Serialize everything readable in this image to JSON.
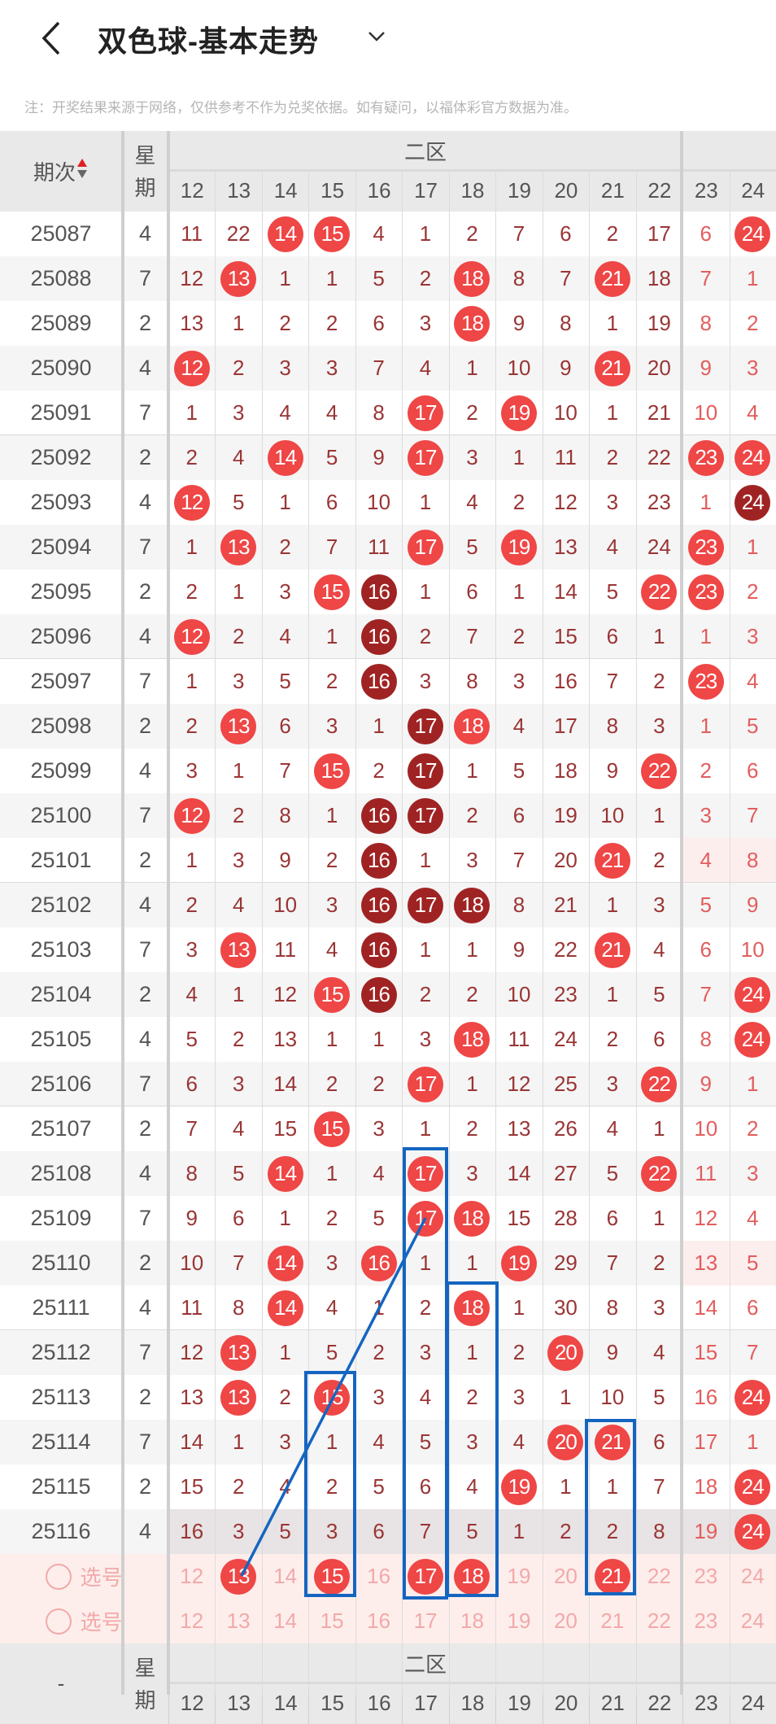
{
  "header": {
    "title": "双色球-基本走势",
    "back_icon": "chevron-left-icon",
    "dropdown_icon": "chevron-down-icon"
  },
  "notice": "注：开奖结果来源于网络，仅供参考不作为兑奖依据。如有疑问，以福体彩官方数据为准。",
  "table": {
    "period_header": "期次",
    "weekday_header": "星期",
    "zone_header": "二区",
    "columns": [
      12,
      13,
      14,
      15,
      16,
      17,
      18,
      19,
      20,
      21,
      22,
      23,
      24
    ],
    "colors": {
      "ball": "#ef4646",
      "ball_hot": "#a02323",
      "miss_text": "#9a3535",
      "annotation": "#1565c0"
    },
    "rows": [
      {
        "period": "25087",
        "weekday": "4",
        "values": [
          11,
          22,
          14,
          15,
          4,
          1,
          2,
          7,
          6,
          2,
          17,
          6,
          24
        ],
        "hits": [
          14,
          15,
          24
        ],
        "hot": []
      },
      {
        "period": "25088",
        "weekday": "7",
        "values": [
          12,
          13,
          1,
          1,
          5,
          2,
          18,
          8,
          7,
          21,
          18,
          7,
          1
        ],
        "hits": [
          13,
          18,
          21
        ],
        "hot": []
      },
      {
        "period": "25089",
        "weekday": "2",
        "values": [
          13,
          1,
          2,
          2,
          6,
          3,
          18,
          9,
          8,
          1,
          19,
          8,
          2
        ],
        "hits": [
          18
        ],
        "hot": []
      },
      {
        "period": "25090",
        "weekday": "4",
        "values": [
          12,
          2,
          3,
          3,
          7,
          4,
          1,
          10,
          9,
          21,
          20,
          9,
          3
        ],
        "hits": [
          12,
          21
        ],
        "hot": []
      },
      {
        "period": "25091",
        "weekday": "7",
        "values": [
          1,
          3,
          4,
          4,
          8,
          17,
          2,
          19,
          10,
          1,
          21,
          10,
          4
        ],
        "hits": [
          17,
          19
        ],
        "hot": []
      },
      {
        "period": "25092",
        "weekday": "2",
        "values": [
          2,
          4,
          14,
          5,
          9,
          17,
          3,
          1,
          11,
          2,
          22,
          23,
          24
        ],
        "hits": [
          14,
          17,
          23,
          24
        ],
        "hot": []
      },
      {
        "period": "25093",
        "weekday": "4",
        "values": [
          12,
          5,
          1,
          6,
          10,
          1,
          4,
          2,
          12,
          3,
          23,
          1,
          24
        ],
        "hits": [
          12,
          24
        ],
        "hot": [
          24
        ]
      },
      {
        "period": "25094",
        "weekday": "7",
        "values": [
          1,
          13,
          2,
          7,
          11,
          17,
          5,
          19,
          13,
          4,
          24,
          23,
          1
        ],
        "hits": [
          13,
          17,
          19,
          23
        ],
        "hot": []
      },
      {
        "period": "25095",
        "weekday": "2",
        "values": [
          2,
          1,
          3,
          15,
          16,
          1,
          6,
          1,
          14,
          5,
          22,
          23,
          2
        ],
        "hits": [
          15,
          16,
          22,
          23
        ],
        "hot": [
          16
        ]
      },
      {
        "period": "25096",
        "weekday": "4",
        "values": [
          12,
          2,
          4,
          1,
          16,
          2,
          7,
          2,
          15,
          6,
          1,
          1,
          3
        ],
        "hits": [
          12,
          16
        ],
        "hot": [
          16
        ]
      },
      {
        "period": "25097",
        "weekday": "7",
        "values": [
          1,
          3,
          5,
          2,
          16,
          3,
          8,
          3,
          16,
          7,
          2,
          23,
          4
        ],
        "hits": [
          16,
          23
        ],
        "hot": [
          16
        ]
      },
      {
        "period": "25098",
        "weekday": "2",
        "values": [
          2,
          13,
          6,
          3,
          1,
          17,
          18,
          4,
          17,
          8,
          3,
          1,
          5
        ],
        "hits": [
          13,
          17,
          18
        ],
        "hot": [
          17
        ]
      },
      {
        "period": "25099",
        "weekday": "4",
        "values": [
          3,
          1,
          7,
          15,
          2,
          17,
          1,
          5,
          18,
          9,
          22,
          2,
          6
        ],
        "hits": [
          15,
          17,
          22
        ],
        "hot": [
          17
        ]
      },
      {
        "period": "25100",
        "weekday": "7",
        "values": [
          12,
          2,
          8,
          1,
          16,
          17,
          2,
          6,
          19,
          10,
          1,
          3,
          7
        ],
        "hits": [
          12,
          16,
          17
        ],
        "hot": [
          16,
          17
        ]
      },
      {
        "period": "25101",
        "weekday": "2",
        "values": [
          1,
          3,
          9,
          2,
          16,
          1,
          3,
          7,
          20,
          21,
          2,
          4,
          8
        ],
        "hits": [
          16,
          21
        ],
        "hot": [
          16
        ],
        "pink": true
      },
      {
        "period": "25102",
        "weekday": "4",
        "values": [
          2,
          4,
          10,
          3,
          16,
          17,
          18,
          8,
          21,
          1,
          3,
          5,
          9
        ],
        "hits": [
          16,
          17,
          18
        ],
        "hot": [
          16,
          17,
          18
        ]
      },
      {
        "period": "25103",
        "weekday": "7",
        "values": [
          3,
          13,
          11,
          4,
          16,
          1,
          1,
          9,
          22,
          21,
          4,
          6,
          10
        ],
        "hits": [
          13,
          16,
          21
        ],
        "hot": [
          16
        ]
      },
      {
        "period": "25104",
        "weekday": "2",
        "values": [
          4,
          1,
          12,
          15,
          16,
          2,
          2,
          10,
          23,
          1,
          5,
          7,
          24
        ],
        "hits": [
          15,
          16,
          24
        ],
        "hot": [
          16
        ]
      },
      {
        "period": "25105",
        "weekday": "4",
        "values": [
          5,
          2,
          13,
          1,
          1,
          3,
          18,
          11,
          24,
          2,
          6,
          8,
          24
        ],
        "hits": [
          18,
          24
        ],
        "hot": []
      },
      {
        "period": "25106",
        "weekday": "7",
        "values": [
          6,
          3,
          14,
          2,
          2,
          17,
          1,
          12,
          25,
          3,
          22,
          9,
          1
        ],
        "hits": [
          17,
          22
        ],
        "hot": []
      },
      {
        "period": "25107",
        "weekday": "2",
        "values": [
          7,
          4,
          15,
          15,
          3,
          1,
          2,
          13,
          26,
          4,
          1,
          10,
          2
        ],
        "hits": [
          15
        ],
        "hot": []
      },
      {
        "period": "25108",
        "weekday": "4",
        "values": [
          8,
          5,
          14,
          1,
          4,
          17,
          3,
          14,
          27,
          5,
          22,
          11,
          3
        ],
        "hits": [
          14,
          17,
          22
        ],
        "hot": []
      },
      {
        "period": "25109",
        "weekday": "7",
        "values": [
          9,
          6,
          1,
          2,
          5,
          17,
          18,
          15,
          28,
          6,
          1,
          12,
          4
        ],
        "hits": [
          17,
          18
        ],
        "hot": []
      },
      {
        "period": "25110",
        "weekday": "2",
        "values": [
          10,
          7,
          14,
          3,
          16,
          1,
          1,
          19,
          29,
          7,
          2,
          13,
          5
        ],
        "hits": [
          14,
          16,
          19
        ],
        "hot": [],
        "pink": true
      },
      {
        "period": "25111",
        "weekday": "4",
        "values": [
          11,
          8,
          14,
          4,
          1,
          2,
          18,
          1,
          30,
          8,
          3,
          14,
          6
        ],
        "hits": [
          14,
          18
        ],
        "hot": []
      },
      {
        "period": "25112",
        "weekday": "7",
        "values": [
          12,
          13,
          1,
          5,
          2,
          3,
          1,
          2,
          20,
          9,
          4,
          15,
          7
        ],
        "hits": [
          13,
          20
        ],
        "hot": []
      },
      {
        "period": "25113",
        "weekday": "2",
        "values": [
          13,
          13,
          2,
          15,
          3,
          4,
          2,
          3,
          1,
          10,
          5,
          16,
          24
        ],
        "hits": [
          13,
          15,
          24
        ],
        "hot": []
      },
      {
        "period": "25114",
        "weekday": "7",
        "values": [
          14,
          1,
          3,
          1,
          4,
          5,
          3,
          4,
          20,
          21,
          6,
          17,
          1
        ],
        "hits": [
          20,
          21
        ],
        "hot": []
      },
      {
        "period": "25115",
        "weekday": "2",
        "values": [
          15,
          2,
          4,
          2,
          5,
          6,
          4,
          19,
          1,
          1,
          7,
          18,
          24
        ],
        "hits": [
          19,
          24
        ],
        "hot": []
      },
      {
        "period": "25116",
        "weekday": "4",
        "values": [
          16,
          3,
          5,
          3,
          6,
          7,
          5,
          1,
          2,
          2,
          8,
          19,
          24
        ],
        "hits": [
          24
        ],
        "hot": [],
        "highlight": true
      }
    ],
    "select_rows": [
      {
        "label": "选号",
        "selected": [
          13,
          15,
          17,
          18,
          21
        ]
      },
      {
        "label": "选号",
        "selected": []
      }
    ],
    "footer_header": {
      "period": "-",
      "weekday": "星期",
      "zone": "二区"
    }
  }
}
